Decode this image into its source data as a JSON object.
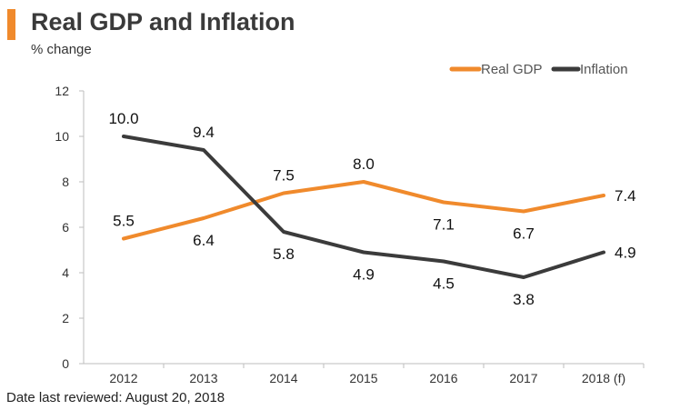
{
  "chart_data": {
    "type": "line",
    "title": "Real GDP and Inflation",
    "ylabel": "% change",
    "xlabel": "",
    "categories": [
      "2012",
      "2013",
      "2014",
      "2015",
      "2016",
      "2017",
      "2018 (f)"
    ],
    "ylim": [
      0,
      12
    ],
    "yticks": [
      0,
      2,
      4,
      6,
      8,
      10,
      12
    ],
    "legend_position": "top-right",
    "series": [
      {
        "name": "Real GDP",
        "color": "#f08a2c",
        "values": [
          5.5,
          6.4,
          7.5,
          8.0,
          7.1,
          6.7,
          7.4
        ],
        "labels": [
          "5.5",
          "6.4",
          "7.5",
          "8.0",
          "7.1",
          "6.7",
          "7.4"
        ]
      },
      {
        "name": "Inflation",
        "color": "#3b3b3b",
        "values": [
          10.0,
          9.4,
          5.8,
          4.9,
          4.5,
          3.8,
          4.9
        ],
        "labels": [
          "10.0",
          "9.4",
          "5.8",
          "4.9",
          "4.5",
          "3.8",
          "4.9"
        ]
      }
    ]
  },
  "footnote": "Date last reviewed: August 20, 2018"
}
